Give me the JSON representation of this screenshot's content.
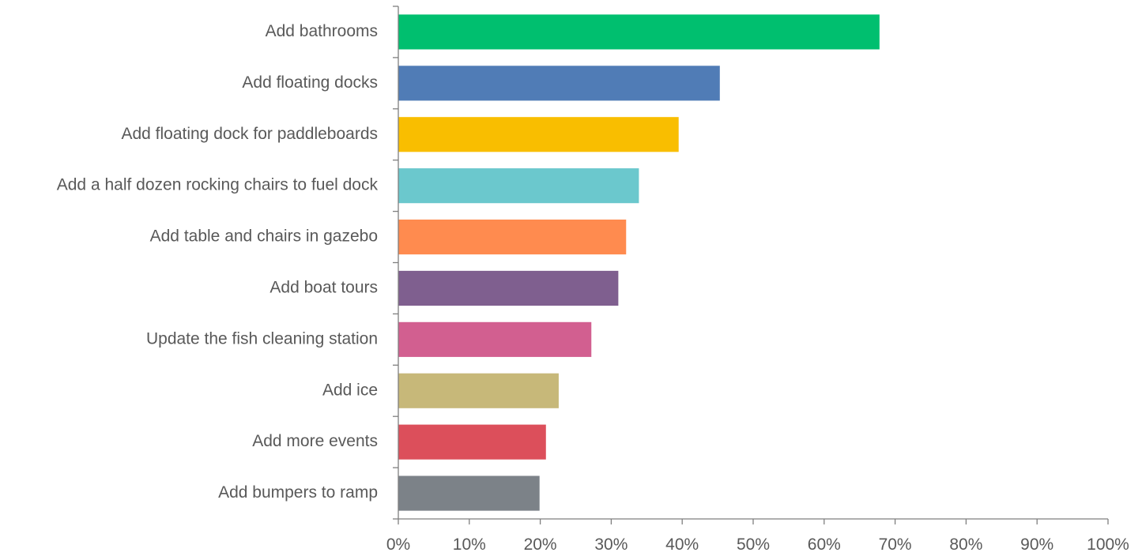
{
  "chart_data": {
    "type": "bar",
    "orientation": "horizontal",
    "categories": [
      "Add bathrooms",
      "Add floating docks",
      "Add floating dock for paddleboards",
      "Add a half dozen rocking chairs to fuel dock",
      "Add table and chairs in gazebo",
      "Add boat tours",
      "Update the fish cleaning station",
      "Add ice",
      "Add more events",
      "Add bumpers to ramp"
    ],
    "values": [
      67.8,
      45.3,
      39.5,
      33.9,
      32.1,
      31.0,
      27.2,
      22.6,
      20.8,
      19.9
    ],
    "colors": [
      "#00bf6f",
      "#507cb6",
      "#f9be00",
      "#6bc8cd",
      "#ff8b4f",
      "#7f5f8f",
      "#d25f90",
      "#c7b879",
      "#dc4f5b",
      "#7c8288"
    ],
    "xlim": [
      0,
      100
    ],
    "x_ticks": [
      "0%",
      "10%",
      "20%",
      "30%",
      "40%",
      "50%",
      "60%",
      "70%",
      "80%",
      "90%",
      "100%"
    ],
    "title": "",
    "xlabel": "",
    "ylabel": "",
    "grid": false,
    "legend": "none"
  }
}
